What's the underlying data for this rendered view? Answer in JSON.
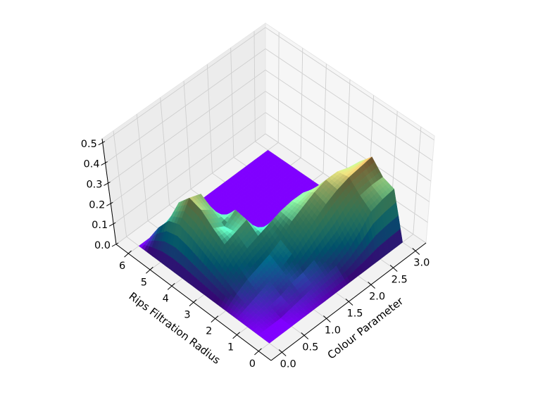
{
  "chart_data": {
    "type": "surface",
    "colormap": "rainbow",
    "clim": [
      0,
      0.4
    ],
    "xlabel": "Colour Parameter",
    "ylabel": "Rips Filtration Radius",
    "zlabel": "",
    "xlim": [
      -0.24,
      3.24
    ],
    "ylim": [
      -0.57,
      6.57
    ],
    "zlim": [
      0,
      0.52
    ],
    "x_ticks": [
      0.0,
      0.5,
      1.0,
      1.5,
      2.0,
      2.5,
      3.0
    ],
    "x_tick_labels": [
      "0.0",
      "0.5",
      "1.0",
      "1.5",
      "2.0",
      "2.5",
      "3.0"
    ],
    "y_ticks": [
      0,
      1,
      2,
      3,
      4,
      5,
      6
    ],
    "y_tick_labels": [
      "0",
      "1",
      "2",
      "3",
      "4",
      "5",
      "6"
    ],
    "z_ticks": [
      0.0,
      0.1,
      0.2,
      0.3,
      0.4,
      0.5
    ],
    "z_tick_labels": [
      "0.0",
      "0.1",
      "0.2",
      "0.3",
      "0.4",
      "0.5"
    ],
    "grid": true,
    "x_values": [
      0,
      0.25,
      0.5,
      0.75,
      1.0,
      1.25,
      1.5,
      1.75,
      2.0,
      2.25,
      2.5,
      2.75,
      3.0
    ],
    "y_values": [
      0,
      0.5,
      1.0,
      1.5,
      2.0,
      2.5,
      3.0,
      3.5,
      4.0,
      4.5,
      5.0,
      5.5,
      6.0
    ],
    "z": [
      [
        0,
        0,
        0,
        0,
        0,
        0,
        0,
        0,
        0,
        0,
        0,
        0,
        0
      ],
      [
        0,
        0,
        0,
        0.01,
        0.02,
        0.03,
        0.04,
        0.05,
        0.08,
        0.13,
        0.19,
        0.21,
        0.22
      ],
      [
        0,
        0.01,
        0.02,
        0.03,
        0.05,
        0.06,
        0.08,
        0.11,
        0.14,
        0.19,
        0.23,
        0.24,
        0.24
      ],
      [
        0,
        0.02,
        0.04,
        0.06,
        0.08,
        0.11,
        0.15,
        0.19,
        0.23,
        0.26,
        0.28,
        0.29,
        0.3
      ],
      [
        0,
        0.04,
        0.07,
        0.09,
        0.11,
        0.14,
        0.19,
        0.22,
        0.25,
        0.27,
        0.27,
        0.25,
        0.24
      ],
      [
        0,
        0.07,
        0.11,
        0.14,
        0.16,
        0.18,
        0.2,
        0.21,
        0.21,
        0.19,
        0.16,
        0.1,
        0.05
      ],
      [
        0,
        0.1,
        0.16,
        0.18,
        0.2,
        0.11,
        0.05,
        0.02,
        0.01,
        0,
        0,
        0,
        0
      ],
      [
        0,
        0.13,
        0.2,
        0.17,
        0.21,
        0.09,
        0.02,
        0,
        0,
        0,
        0,
        0,
        0
      ],
      [
        0,
        0.16,
        0.25,
        0.21,
        0.14,
        0.04,
        0,
        0,
        0,
        0,
        0,
        0,
        0
      ],
      [
        0,
        0.18,
        0.27,
        0.25,
        0.09,
        0.01,
        0,
        0,
        0,
        0,
        0,
        0,
        0
      ],
      [
        0,
        0.16,
        0.21,
        0.12,
        0.03,
        0,
        0,
        0,
        0,
        0,
        0,
        0,
        0
      ],
      [
        0,
        0.09,
        0.05,
        0.02,
        0,
        0,
        0,
        0,
        0,
        0,
        0,
        0,
        0
      ],
      [
        0,
        0,
        0,
        0,
        0,
        0,
        0,
        0,
        0,
        0,
        0,
        0,
        0
      ]
    ]
  }
}
